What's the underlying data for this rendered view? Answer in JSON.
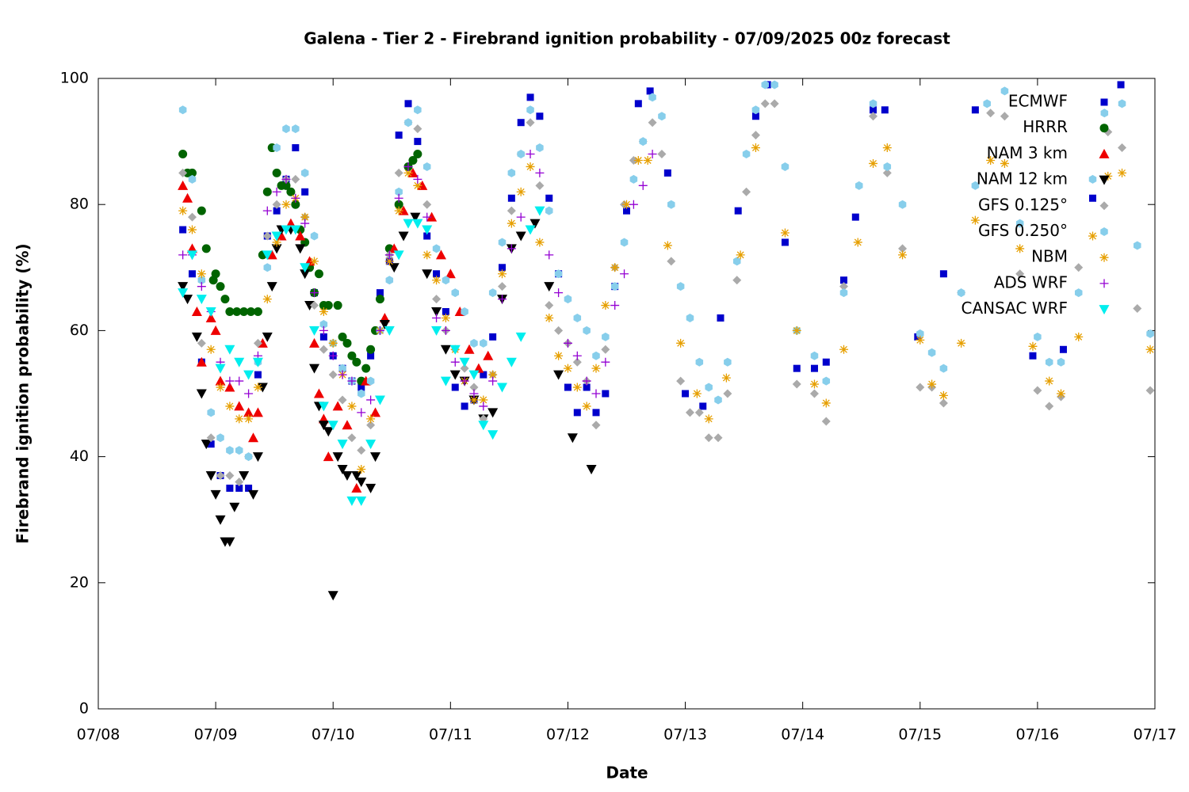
{
  "chart_data": {
    "type": "scatter",
    "title": "Galena - Tier 2 - Firebrand ignition probability - 07/09/2025 00z forecast",
    "x_label": "Date",
    "y_label": "Firebrand ignition probability (%)",
    "xlim": [
      0,
      9
    ],
    "ylim": [
      0,
      100
    ],
    "xticks": [
      {
        "value": 0,
        "label": "07/08"
      },
      {
        "value": 1,
        "label": "07/09"
      },
      {
        "value": 2,
        "label": "07/10"
      },
      {
        "value": 3,
        "label": "07/11"
      },
      {
        "value": 4,
        "label": "07/12"
      },
      {
        "value": 5,
        "label": "07/13"
      },
      {
        "value": 6,
        "label": "07/14"
      },
      {
        "value": 7,
        "label": "07/15"
      },
      {
        "value": 8,
        "label": "07/16"
      },
      {
        "value": 9,
        "label": "07/17"
      }
    ],
    "yticks": [
      0,
      20,
      40,
      60,
      80,
      100
    ],
    "grid": false,
    "legend": "top right",
    "series": [
      {
        "name": "ECMWF",
        "color": "#0000cc",
        "marker": "square",
        "x": [
          0.72,
          0.8,
          0.88,
          0.96,
          1.04,
          1.12,
          1.2,
          1.28,
          1.36,
          1.44,
          1.52,
          1.6,
          1.68,
          1.76,
          1.84,
          1.92,
          2.0,
          2.08,
          2.16,
          2.24,
          2.32,
          2.4,
          2.48,
          2.56,
          2.64,
          2.72,
          2.8,
          2.88,
          2.96,
          3.04,
          3.12,
          3.2,
          3.28,
          3.36,
          3.44,
          3.52,
          3.6,
          3.68,
          3.76,
          3.84,
          3.92,
          4.0,
          4.08,
          4.16,
          4.24,
          4.32,
          4.4,
          4.5,
          4.6,
          4.7,
          4.85,
          5.0,
          5.15,
          5.3,
          5.45,
          5.6,
          5.7,
          5.85,
          5.95,
          6.1,
          6.2,
          6.35,
          6.45,
          6.6,
          6.7,
          6.98,
          7.2,
          7.47,
          7.96,
          8.22,
          8.47,
          8.71
        ],
        "values": [
          76,
          69,
          55,
          42,
          37,
          35,
          35,
          35,
          53,
          75,
          79,
          84,
          89,
          82,
          66,
          59,
          56,
          54,
          52,
          51,
          56,
          66,
          71,
          91,
          96,
          90,
          75,
          69,
          63,
          51,
          48,
          49,
          53,
          59,
          70,
          81,
          93,
          97,
          94,
          81,
          69,
          51,
          47,
          51,
          47,
          50,
          67,
          79,
          96,
          98,
          85,
          50,
          48,
          62,
          79,
          94,
          99,
          74,
          54,
          54,
          55,
          68,
          78,
          95,
          95,
          59,
          69,
          95,
          56,
          57,
          81,
          99
        ]
      },
      {
        "name": "HRRR",
        "color": "#006400",
        "marker": "circle",
        "x": [
          0.72,
          0.76,
          0.8,
          0.88,
          0.92,
          0.98,
          1.0,
          1.04,
          1.08,
          1.12,
          1.18,
          1.24,
          1.3,
          1.36,
          1.4,
          1.44,
          1.48,
          1.52,
          1.56,
          1.6,
          1.64,
          1.68,
          1.72,
          1.76,
          1.8,
          1.84,
          1.88,
          1.92,
          1.96,
          2.04,
          2.08,
          2.12,
          2.16,
          2.2,
          2.24,
          2.28,
          2.32,
          2.36,
          2.4,
          2.48,
          2.56,
          2.64,
          2.68,
          2.72
        ],
        "values": [
          88,
          85,
          85,
          79,
          73,
          68,
          69,
          67,
          65,
          63,
          63,
          63,
          63,
          63,
          72,
          82,
          89,
          85,
          83,
          83,
          82,
          80,
          76,
          74,
          70,
          66,
          69,
          64,
          64,
          64,
          59,
          58,
          56,
          55,
          52,
          54,
          57,
          60,
          65,
          73,
          80,
          86,
          87,
          88
        ]
      },
      {
        "name": "NAM 3 km",
        "color": "#ee0000",
        "marker": "triangle-up",
        "x": [
          0.72,
          0.76,
          0.8,
          0.84,
          0.88,
          0.96,
          1.0,
          1.04,
          1.12,
          1.2,
          1.28,
          1.32,
          1.36,
          1.4,
          1.48,
          1.56,
          1.64,
          1.72,
          1.8,
          1.84,
          1.88,
          1.92,
          1.96,
          2.04,
          2.12,
          2.2,
          2.28,
          2.36,
          2.44,
          2.52,
          2.6,
          2.68,
          2.76,
          2.84,
          2.92,
          3.0,
          3.08,
          3.16,
          3.24,
          3.32
        ],
        "values": [
          83,
          81,
          73,
          63,
          55,
          62,
          60,
          52,
          51,
          48,
          47,
          43,
          47,
          58,
          72,
          75,
          77,
          75,
          71,
          58,
          50,
          46,
          40,
          48,
          45,
          35,
          52,
          47,
          62,
          73,
          79,
          85,
          83,
          78,
          72,
          69,
          63,
          57,
          54,
          56
        ]
      },
      {
        "name": "NAM 12 km",
        "color": "#000000",
        "marker": "triangle-down",
        "x": [
          0.72,
          0.76,
          0.84,
          0.88,
          0.92,
          0.96,
          1.0,
          1.04,
          1.08,
          1.12,
          1.16,
          1.24,
          1.32,
          1.36,
          1.4,
          1.44,
          1.48,
          1.52,
          1.56,
          1.64,
          1.72,
          1.76,
          1.8,
          1.84,
          1.88,
          1.92,
          1.96,
          2.0,
          2.04,
          2.08,
          2.12,
          2.2,
          2.24,
          2.32,
          2.36,
          2.44,
          2.52,
          2.6,
          2.7,
          2.8,
          2.88,
          2.96,
          3.04,
          3.12,
          3.2,
          3.28,
          3.36,
          3.44,
          3.52,
          3.6,
          3.72,
          3.84,
          3.92,
          4.04,
          4.2
        ],
        "values": [
          67,
          65,
          59,
          50,
          42,
          37,
          34,
          30,
          26.5,
          26.5,
          32,
          37,
          34,
          40,
          51,
          59,
          67,
          73,
          76,
          76,
          73,
          69,
          64,
          54,
          48,
          45,
          44,
          18,
          40,
          38,
          37,
          37,
          36,
          35,
          40,
          61,
          70,
          75,
          78,
          69,
          63,
          57,
          53,
          52,
          49,
          46,
          47,
          65,
          73,
          75,
          77,
          67,
          53,
          43,
          38
        ]
      },
      {
        "name": "GFS 0.125°",
        "color": "#aaaaaa",
        "marker": "diamond",
        "x": [
          0.72,
          0.8,
          0.88,
          0.96,
          1.04,
          1.12,
          1.2,
          1.28,
          1.36,
          1.44,
          1.52,
          1.6,
          1.68,
          1.76,
          1.84,
          1.92,
          2.0,
          2.08,
          2.16,
          2.24,
          2.32,
          2.4,
          2.48,
          2.56,
          2.64,
          2.72,
          2.8,
          2.88,
          2.96,
          3.04,
          3.12,
          3.2,
          3.28,
          3.36,
          3.44,
          3.52,
          3.6,
          3.68,
          3.76,
          3.84,
          3.92,
          4.0,
          4.08,
          4.16,
          4.24,
          4.32,
          4.4,
          4.48,
          4.56,
          4.64,
          4.72,
          4.8,
          4.88,
          4.96,
          5.04,
          5.12,
          5.2,
          5.28,
          5.36,
          5.44,
          5.52,
          5.6,
          5.68,
          5.76,
          5.95,
          6.1,
          6.2,
          6.35,
          6.6,
          6.72,
          6.85,
          7.0,
          7.1,
          7.2,
          7.35,
          7.6,
          7.72,
          7.85,
          8.0,
          8.1,
          8.2,
          8.35,
          8.6,
          8.72,
          8.85,
          8.96
        ],
        "values": [
          85,
          78,
          58,
          43,
          37,
          37,
          36,
          40,
          58,
          75,
          80,
          84,
          84,
          78,
          64,
          57,
          53,
          49,
          43,
          41,
          45,
          60,
          72,
          85,
          93,
          92,
          80,
          65,
          60,
          57,
          54,
          51,
          46,
          53,
          67,
          79,
          88,
          93,
          83,
          64,
          60,
          58,
          55,
          52,
          45,
          57,
          70,
          80,
          87,
          90,
          93,
          88,
          71,
          52,
          47,
          47,
          43,
          43,
          50,
          68,
          82,
          91,
          96,
          96,
          51.5,
          50,
          45.6,
          67,
          94,
          85,
          73,
          51,
          51,
          48.5,
          66,
          94.5,
          94,
          69,
          50.5,
          48,
          49.5,
          70,
          91.5,
          89,
          63.5,
          50.5
        ]
      },
      {
        "name": "GFS 0.250°",
        "color": "#87ceeb",
        "marker": "hexagon",
        "x": [
          0.72,
          0.8,
          0.88,
          0.96,
          1.04,
          1.12,
          1.2,
          1.28,
          1.36,
          1.44,
          1.52,
          1.6,
          1.68,
          1.76,
          1.84,
          1.92,
          2.0,
          2.08,
          2.16,
          2.24,
          2.32,
          2.4,
          2.48,
          2.56,
          2.64,
          2.72,
          2.8,
          2.88,
          2.96,
          3.04,
          3.12,
          3.2,
          3.28,
          3.36,
          3.44,
          3.52,
          3.6,
          3.68,
          3.76,
          3.84,
          3.92,
          4.0,
          4.08,
          4.16,
          4.24,
          4.32,
          4.4,
          4.48,
          4.56,
          4.64,
          4.72,
          4.8,
          4.88,
          4.96,
          5.04,
          5.12,
          5.2,
          5.28,
          5.36,
          5.44,
          5.52,
          5.6,
          5.68,
          5.76,
          5.85,
          5.95,
          6.1,
          6.2,
          6.35,
          6.48,
          6.6,
          6.72,
          6.85,
          7.0,
          7.1,
          7.2,
          7.35,
          7.47,
          7.57,
          7.72,
          7.85,
          8.0,
          8.1,
          8.2,
          8.35,
          8.47,
          8.57,
          8.72,
          8.85,
          8.96
        ],
        "values": [
          95,
          84,
          68,
          47,
          43,
          41,
          41,
          40,
          55,
          70,
          89,
          92,
          92,
          85,
          75,
          61,
          58,
          54,
          52,
          50,
          52,
          60,
          68,
          82,
          93,
          95,
          86,
          73,
          68,
          66,
          63,
          58,
          58,
          66,
          74,
          85,
          88,
          95,
          89,
          79,
          69,
          65,
          62,
          60,
          56,
          59,
          67,
          74,
          84,
          90,
          97,
          94,
          80,
          67,
          62,
          55,
          51,
          49,
          55,
          71,
          88,
          95,
          99,
          99,
          86,
          60,
          56,
          52,
          66,
          83,
          96,
          86,
          80,
          59.5,
          56.5,
          54,
          66,
          83,
          96,
          98,
          77,
          59,
          55,
          55,
          66,
          84,
          94.5,
          96,
          73.5,
          59.5
        ]
      },
      {
        "name": "NBM",
        "color": "#e69f00",
        "marker": "star",
        "x": [
          0.72,
          0.8,
          0.88,
          0.96,
          1.04,
          1.12,
          1.2,
          1.28,
          1.36,
          1.44,
          1.52,
          1.6,
          1.68,
          1.76,
          1.84,
          1.92,
          2.0,
          2.08,
          2.16,
          2.24,
          2.32,
          2.4,
          2.48,
          2.56,
          2.64,
          2.72,
          2.8,
          2.88,
          2.96,
          3.04,
          3.12,
          3.2,
          3.28,
          3.36,
          3.44,
          3.52,
          3.6,
          3.68,
          3.76,
          3.84,
          3.92,
          4.0,
          4.08,
          4.16,
          4.24,
          4.32,
          4.4,
          4.5,
          4.6,
          4.68,
          4.85,
          4.96,
          5.1,
          5.2,
          5.35,
          5.47,
          5.6,
          5.85,
          5.95,
          6.1,
          6.2,
          6.35,
          6.47,
          6.6,
          6.72,
          6.85,
          7.0,
          7.1,
          7.2,
          7.35,
          7.47,
          7.6,
          7.72,
          7.85,
          7.96,
          8.1,
          8.2,
          8.35,
          8.47,
          8.6,
          8.72,
          8.96
        ],
        "values": [
          79,
          76,
          69,
          57,
          51,
          48,
          46,
          46,
          51,
          65,
          74,
          80,
          81,
          78,
          71,
          63,
          58,
          53,
          48,
          38,
          46,
          60,
          71,
          79,
          85,
          83,
          72,
          68,
          62,
          57,
          52,
          49,
          49,
          53,
          69,
          77,
          82,
          86,
          74,
          62,
          56,
          54,
          51,
          48,
          54,
          64,
          70,
          80,
          87,
          87,
          73.5,
          58,
          50,
          46,
          52.5,
          72,
          89,
          75.5,
          60,
          51.5,
          48.5,
          57,
          74,
          86.5,
          89,
          72,
          58.5,
          51.5,
          49.7,
          58,
          77.5,
          87,
          86.5,
          73,
          57.5,
          52,
          50,
          59,
          75,
          84.5,
          85,
          57
        ]
      },
      {
        "name": "ADS WRF",
        "color": "#9400d3",
        "marker": "plus",
        "x": [
          0.72,
          0.8,
          0.88,
          0.96,
          1.04,
          1.12,
          1.2,
          1.28,
          1.36,
          1.44,
          1.52,
          1.6,
          1.68,
          1.76,
          1.84,
          1.92,
          2.0,
          2.08,
          2.16,
          2.24,
          2.32,
          2.4,
          2.48,
          2.56,
          2.64,
          2.72,
          2.8,
          2.88,
          2.96,
          3.04,
          3.12,
          3.2,
          3.28,
          3.36,
          3.44,
          3.52,
          3.6,
          3.68,
          3.76,
          3.84,
          3.92,
          4.0,
          4.08,
          4.16,
          4.24,
          4.32,
          4.4,
          4.48,
          4.56,
          4.64,
          4.72
        ],
        "values": [
          72,
          72,
          67,
          63,
          55,
          52,
          52,
          50,
          56,
          79,
          82,
          84,
          81,
          77,
          66,
          60,
          56,
          53,
          52,
          47,
          49,
          60,
          72,
          81,
          86,
          84,
          78,
          62,
          60,
          55,
          52,
          50,
          48,
          52,
          65,
          73,
          78,
          88,
          85,
          72,
          66,
          58,
          56,
          52,
          50,
          55,
          64,
          69,
          80,
          83,
          88
        ]
      },
      {
        "name": "CANSAC WRF",
        "color": "#00eeee",
        "marker": "triangle-down",
        "x": [
          0.72,
          0.8,
          0.88,
          0.96,
          1.04,
          1.12,
          1.2,
          1.28,
          1.36,
          1.44,
          1.52,
          1.6,
          1.68,
          1.76,
          1.84,
          1.92,
          2.0,
          2.08,
          2.16,
          2.24,
          2.32,
          2.4,
          2.48,
          2.56,
          2.64,
          2.72,
          2.8,
          2.88,
          2.96,
          3.04,
          3.12,
          3.2,
          3.28,
          3.36,
          3.44,
          3.52,
          3.6,
          3.68,
          3.76
        ],
        "values": [
          66,
          72,
          65,
          63,
          54,
          57,
          55,
          53,
          55,
          72,
          75,
          76,
          76,
          70,
          60,
          48,
          45,
          42,
          33,
          33,
          42,
          49,
          60,
          72,
          77,
          77,
          76,
          60,
          52,
          57,
          55,
          53,
          45,
          43.5,
          51,
          55,
          59,
          76,
          79
        ]
      }
    ]
  }
}
